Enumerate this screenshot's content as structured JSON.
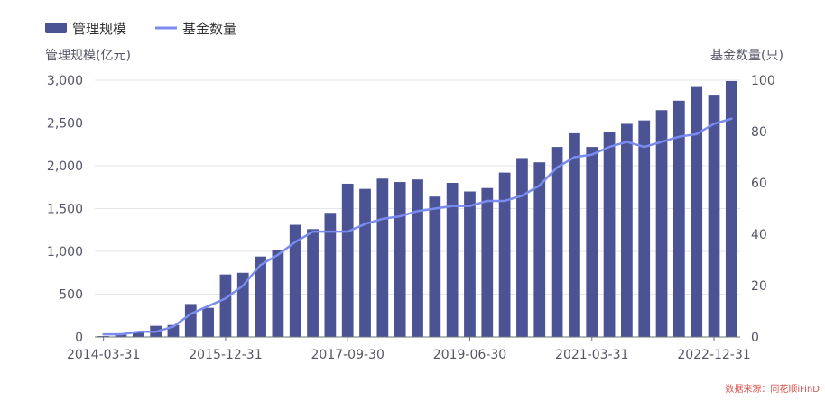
{
  "chart_data": {
    "type": "bar+line",
    "legend": {
      "bar_label": "管理规模",
      "line_label": "基金数量"
    },
    "y_left": {
      "label": "管理规模(亿元)",
      "range": [
        0,
        3000
      ],
      "ticks": [
        "0",
        "500",
        "1,000",
        "1,500",
        "2,000",
        "2,500",
        "3,000"
      ]
    },
    "y_right": {
      "label": "基金数量(只)",
      "range": [
        0,
        100
      ],
      "ticks": [
        "0",
        "20",
        "40",
        "60",
        "80",
        "100"
      ]
    },
    "x_tick_labels": [
      "2014-03-31",
      "2015-12-31",
      "2017-09-30",
      "2019-06-30",
      "2021-03-31",
      "2022-12-31"
    ],
    "categories": [
      "2014-03-31",
      "2014-06-30",
      "2014-09-30",
      "2014-12-31",
      "2015-03-31",
      "2015-06-30",
      "2015-09-30",
      "2015-12-31",
      "2016-03-31",
      "2016-06-30",
      "2016-09-30",
      "2016-12-31",
      "2017-03-31",
      "2017-06-30",
      "2017-09-30",
      "2017-12-31",
      "2018-03-31",
      "2018-06-30",
      "2018-09-30",
      "2018-12-31",
      "2019-03-31",
      "2019-06-30",
      "2019-09-30",
      "2019-12-31",
      "2020-03-31",
      "2020-06-30",
      "2020-09-30",
      "2020-12-31",
      "2021-03-31",
      "2021-06-30",
      "2021-09-30",
      "2021-12-31",
      "2022-03-31",
      "2022-06-30",
      "2022-09-30",
      "2022-12-31",
      "2023-03-31"
    ],
    "series": [
      {
        "name": "管理规模",
        "type": "bar",
        "axis": "left",
        "color": "#4b5394",
        "values": [
          10,
          25,
          65,
          130,
          140,
          385,
          340,
          730,
          750,
          940,
          1020,
          1310,
          1260,
          1450,
          1790,
          1730,
          1850,
          1810,
          1840,
          1640,
          1800,
          1700,
          1740,
          1920,
          2090,
          2040,
          2220,
          2380,
          2220,
          2390,
          2490,
          2530,
          2650,
          2760,
          2920,
          2820,
          2990
        ]
      },
      {
        "name": "基金数量",
        "type": "line",
        "axis": "right",
        "color": "#7b8cf0",
        "values": [
          1,
          1,
          2,
          2,
          4,
          9,
          12,
          15,
          20,
          28,
          32,
          37,
          41,
          41,
          41,
          44,
          46,
          47,
          49,
          50,
          51,
          51,
          53,
          53,
          55,
          59,
          66,
          70,
          71,
          74,
          76,
          74,
          76,
          78,
          79,
          83,
          85
        ]
      }
    ]
  },
  "source_text": "数据来源：同花顺iFinD"
}
